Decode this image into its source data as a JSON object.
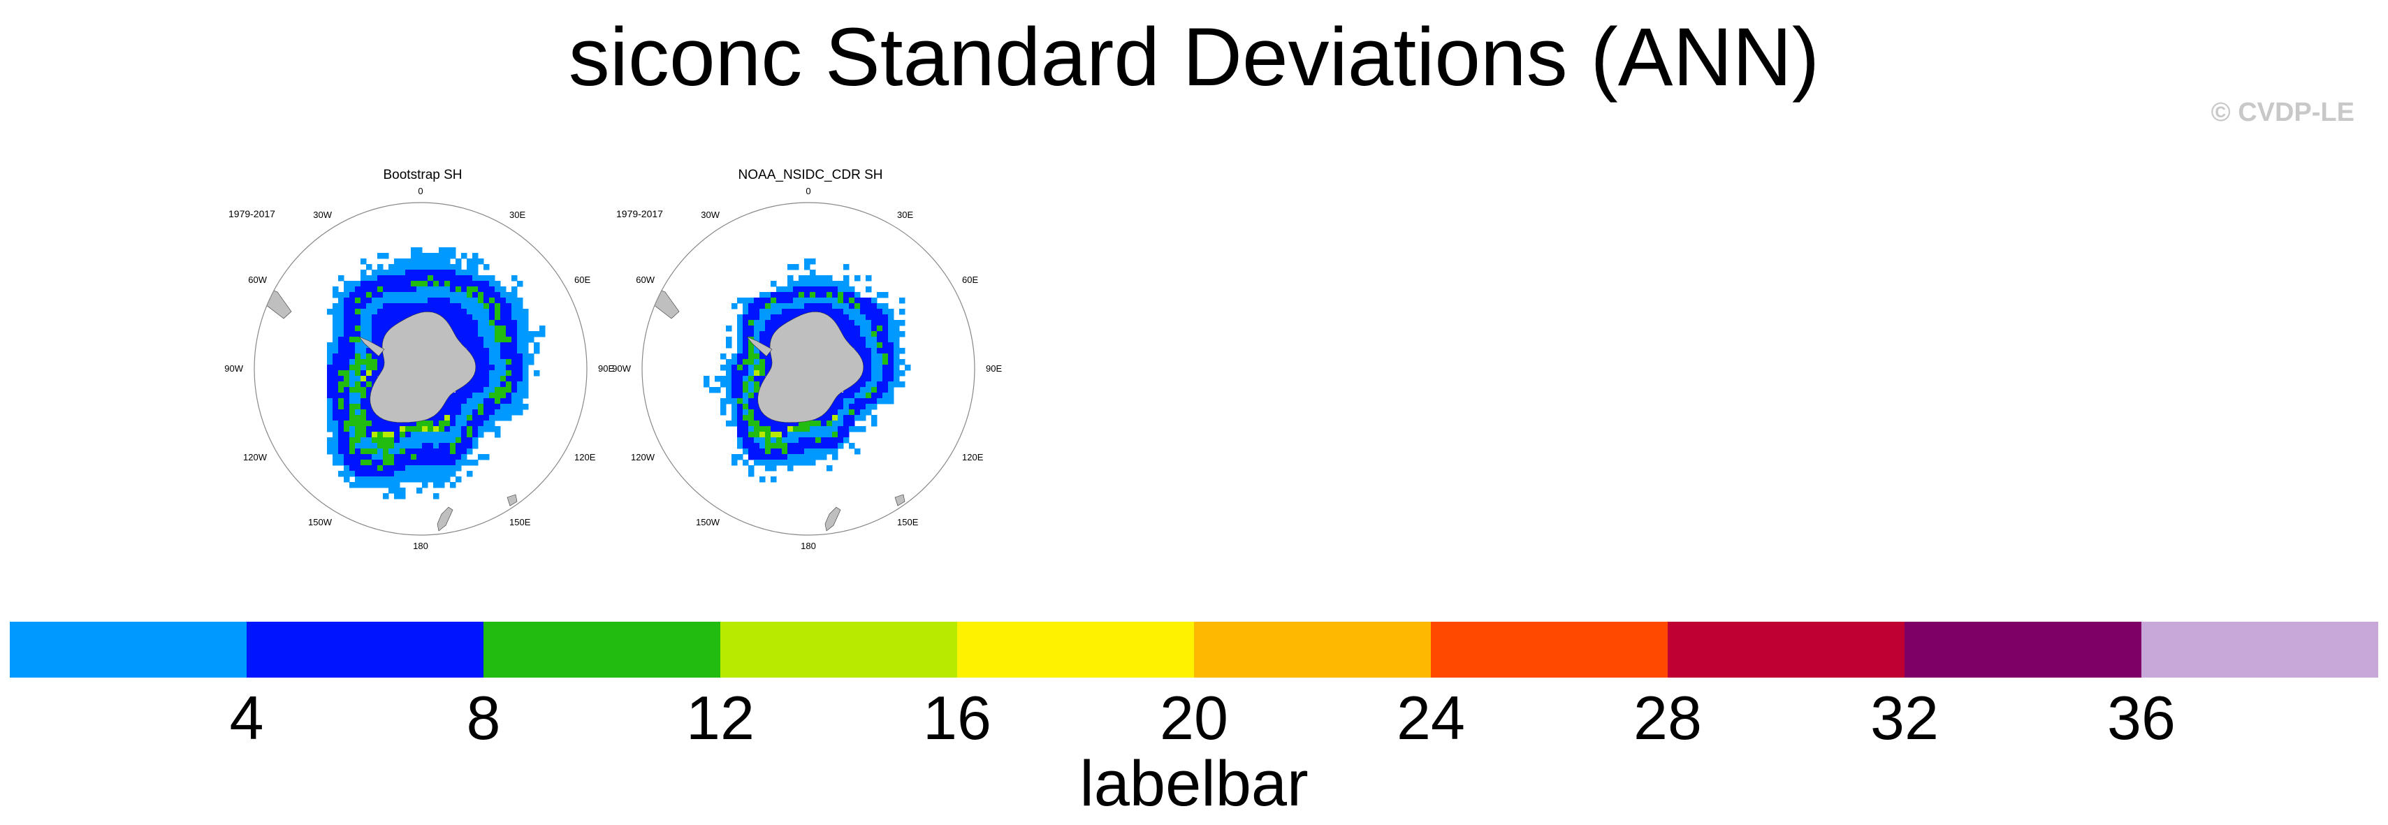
{
  "title": "siconc Standard Deviations (ANN)",
  "credit": "© CVDP-LE",
  "panels": [
    {
      "title": "Bootstrap SH",
      "period": "1979-2017"
    },
    {
      "title": "NOAA_NSIDC_CDR SH",
      "period": "1979-2017"
    }
  ],
  "longitude_labels": [
    "0",
    "30E",
    "60E",
    "90E",
    "120E",
    "150E",
    "180",
    "150W",
    "120W",
    "90W",
    "60W",
    "30W"
  ],
  "labelbar": {
    "title": "labelbar",
    "ticks": [
      "4",
      "8",
      "12",
      "16",
      "20",
      "24",
      "28",
      "32",
      "36"
    ],
    "colors": [
      "#0099ff",
      "#0015ff",
      "#22bb10",
      "#b8ea00",
      "#fff200",
      "#ffb800",
      "#ff4800",
      "#be0033",
      "#7e0066",
      "#c8a8d8"
    ]
  },
  "land_color": "#bfbfbf"
}
